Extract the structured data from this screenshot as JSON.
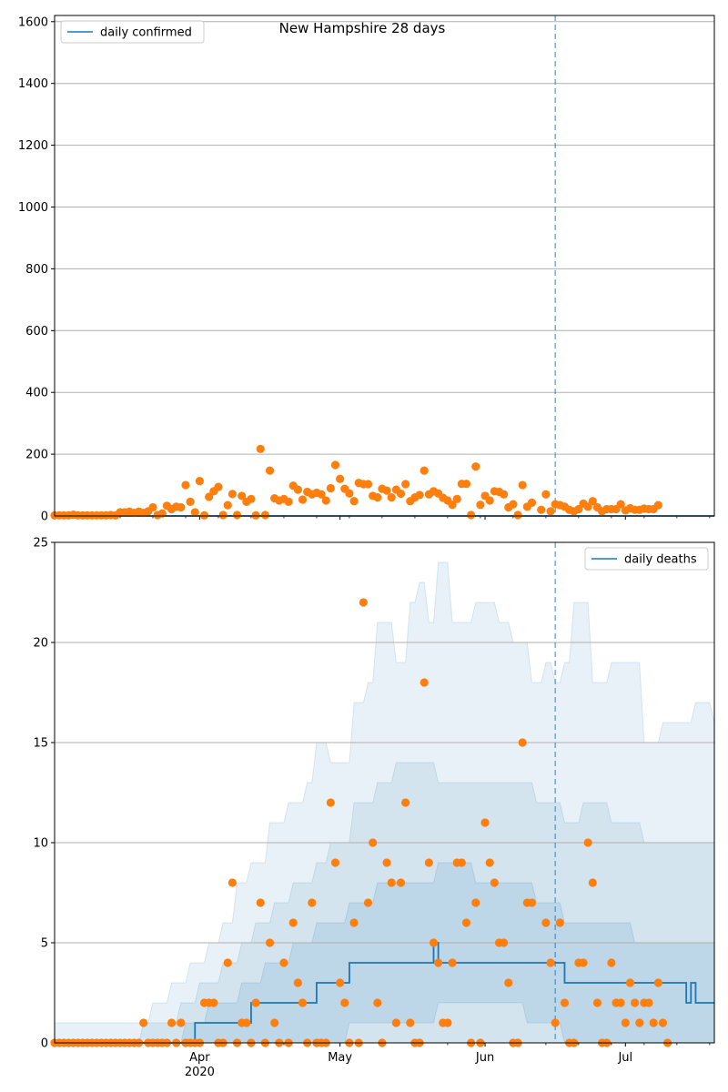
{
  "chart_data": [
    {
      "type": "scatter",
      "title": "New Hampshire 28 days",
      "xlabel": "",
      "ylabel": "",
      "ylim": [
        0,
        1620
      ],
      "yticks": [
        0,
        200,
        400,
        600,
        800,
        1000,
        1200,
        1400,
        1600
      ],
      "grid": "horizontal",
      "legend_position": "top-left",
      "forecast_date": "2020-06-16",
      "series": [
        {
          "name": "daily confirmed",
          "kind": "line",
          "color": "#1f77b4",
          "points": [
            [
              "2020-03-01",
              0
            ],
            [
              "2020-07-20",
              0
            ]
          ]
        },
        {
          "kind": "scatter",
          "color": "#ff7f0e",
          "start": "2020-03-01",
          "values": [
            2,
            2,
            2,
            2,
            4,
            2,
            2,
            2,
            2,
            2,
            2,
            2,
            3,
            2,
            12,
            12,
            14,
            10,
            14,
            10,
            15,
            28,
            3,
            8,
            33,
            22,
            30,
            28,
            100,
            46,
            12,
            113,
            2,
            62,
            80,
            94,
            3,
            35,
            71,
            3,
            65,
            46,
            55,
            2,
            217,
            3,
            147,
            57,
            50,
            55,
            46,
            98,
            85,
            53,
            78,
            70,
            75,
            70,
            50,
            90,
            165,
            120,
            88,
            73,
            48,
            107,
            103,
            103,
            65,
            60,
            88,
            82,
            60,
            85,
            72,
            103,
            48,
            60,
            68,
            147,
            70,
            80,
            73,
            59,
            50,
            36,
            55,
            104,
            104,
            3,
            160,
            36,
            65,
            50,
            80,
            78,
            70,
            28,
            38,
            3,
            100,
            30,
            43,
            null,
            20,
            70,
            15,
            38,
            35,
            30,
            20,
            15,
            22,
            40,
            30,
            48,
            28,
            15,
            22,
            22,
            22,
            38,
            18,
            25,
            20,
            20,
            24,
            22,
            22,
            35
          ]
        }
      ]
    },
    {
      "type": "area",
      "title": "",
      "xlabel": "",
      "ylabel": "",
      "ylim": [
        0,
        25
      ],
      "yticks": [
        0,
        5,
        10,
        15,
        20,
        25
      ],
      "grid": "horizontal",
      "legend_position": "top-right",
      "forecast_date": "2020-06-16",
      "x_tick_labels": [
        {
          "date": "2020-04-01",
          "label": "Apr",
          "sublabel": "2020"
        },
        {
          "date": "2020-05-01",
          "label": "May"
        },
        {
          "date": "2020-06-01",
          "label": "Jun"
        },
        {
          "date": "2020-07-01",
          "label": "Jul"
        }
      ],
      "series": [
        {
          "name": "daily deaths",
          "kind": "step-line",
          "color": "#1f77b4",
          "breakpoints": [
            [
              "2020-03-01",
              0
            ],
            [
              "2020-03-31",
              1
            ],
            [
              "2020-04-12",
              2
            ],
            [
              "2020-04-26",
              3
            ],
            [
              "2020-05-03",
              4
            ],
            [
              "2020-05-21",
              5
            ],
            [
              "2020-05-22",
              4
            ],
            [
              "2020-06-16",
              4
            ],
            [
              "2020-06-18",
              3
            ],
            [
              "2020-07-14",
              2
            ],
            [
              "2020-07-15",
              3
            ],
            [
              "2020-07-16",
              2
            ],
            [
              "2020-07-20",
              2
            ]
          ]
        },
        {
          "kind": "scatter",
          "color": "#ff7f0e",
          "start": "2020-03-01",
          "values": [
            0,
            0,
            0,
            0,
            0,
            0,
            0,
            0,
            0,
            0,
            0,
            0,
            0,
            0,
            0,
            0,
            0,
            0,
            0,
            1,
            0,
            0,
            0,
            0,
            0,
            1,
            0,
            1,
            0,
            0,
            0,
            0,
            2,
            2,
            2,
            0,
            0,
            4,
            8,
            0,
            1,
            1,
            0,
            2,
            7,
            0,
            5,
            1,
            0,
            4,
            0,
            6,
            3,
            2,
            0,
            7,
            0,
            0,
            0,
            12,
            9,
            3,
            2,
            0,
            6,
            0,
            22,
            7,
            10,
            2,
            0,
            9,
            8,
            1,
            8,
            12,
            1,
            0,
            0,
            18,
            9,
            5,
            4,
            1,
            1,
            4,
            9,
            9,
            6,
            0,
            7,
            0,
            11,
            9,
            8,
            5,
            5,
            3,
            0,
            0,
            15,
            7,
            7,
            null,
            null,
            6,
            4,
            1,
            6,
            2,
            0,
            0,
            4,
            4,
            10,
            8,
            2,
            0,
            0,
            4,
            2,
            2,
            1,
            3,
            2,
            1,
            2,
            2,
            1,
            3,
            1,
            0
          ]
        }
      ],
      "bands": [
        {
          "color": "#1f77b4",
          "opacity": 0.1,
          "upper": [
            [
              "2020-03-01",
              1
            ],
            [
              "2020-03-16",
              1
            ],
            [
              "2020-03-22",
              2
            ],
            [
              "2020-03-26",
              3
            ],
            [
              "2020-03-30",
              4
            ],
            [
              "2020-04-03",
              5
            ],
            [
              "2020-04-06",
              6
            ],
            [
              "2020-04-09",
              8
            ],
            [
              "2020-04-12",
              9
            ],
            [
              "2020-04-16",
              11
            ],
            [
              "2020-04-20",
              12
            ],
            [
              "2020-04-24",
              13
            ],
            [
              "2020-04-26",
              15
            ],
            [
              "2020-04-29",
              14
            ],
            [
              "2020-05-04",
              17
            ],
            [
              "2020-05-07",
              18
            ],
            [
              "2020-05-09",
              21
            ],
            [
              "2020-05-13",
              19
            ],
            [
              "2020-05-16",
              22
            ],
            [
              "2020-05-18",
              23
            ],
            [
              "2020-05-20",
              21
            ],
            [
              "2020-05-22",
              24
            ],
            [
              "2020-05-25",
              21
            ],
            [
              "2020-05-30",
              22
            ],
            [
              "2020-06-04",
              21
            ],
            [
              "2020-06-07",
              20
            ],
            [
              "2020-06-11",
              18
            ],
            [
              "2020-06-14",
              19
            ],
            [
              "2020-06-16",
              18
            ],
            [
              "2020-06-18",
              19
            ],
            [
              "2020-06-20",
              22
            ],
            [
              "2020-06-24",
              18
            ],
            [
              "2020-06-28",
              19
            ],
            [
              "2020-07-02",
              19
            ],
            [
              "2020-07-05",
              15
            ],
            [
              "2020-07-09",
              16
            ],
            [
              "2020-07-13",
              16
            ],
            [
              "2020-07-16",
              17
            ],
            [
              "2020-07-20",
              16
            ]
          ],
          "lower": [
            [
              "2020-03-01",
              0
            ],
            [
              "2020-07-20",
              0
            ]
          ]
        },
        {
          "color": "#1f77b4",
          "opacity": 0.1,
          "upper": [
            [
              "2020-03-01",
              0
            ],
            [
              "2020-03-20",
              1
            ],
            [
              "2020-03-28",
              2
            ],
            [
              "2020-04-01",
              3
            ],
            [
              "2020-04-06",
              4
            ],
            [
              "2020-04-10",
              5
            ],
            [
              "2020-04-13",
              6
            ],
            [
              "2020-04-17",
              7
            ],
            [
              "2020-04-21",
              8
            ],
            [
              "2020-04-26",
              9
            ],
            [
              "2020-04-29",
              10
            ],
            [
              "2020-05-04",
              12
            ],
            [
              "2020-05-09",
              13
            ],
            [
              "2020-05-13",
              14
            ],
            [
              "2020-05-22",
              13
            ],
            [
              "2020-05-30",
              13
            ],
            [
              "2020-06-06",
              13
            ],
            [
              "2020-06-12",
              12
            ],
            [
              "2020-06-16",
              12
            ],
            [
              "2020-06-18",
              11
            ],
            [
              "2020-06-22",
              12
            ],
            [
              "2020-06-28",
              11
            ],
            [
              "2020-07-05",
              10
            ],
            [
              "2020-07-12",
              10
            ],
            [
              "2020-07-20",
              10
            ]
          ],
          "lower": [
            [
              "2020-03-01",
              0
            ],
            [
              "2020-07-20",
              0
            ]
          ]
        },
        {
          "color": "#1f77b4",
          "opacity": 0.12,
          "upper": [
            [
              "2020-03-01",
              0
            ],
            [
              "2020-03-29",
              1
            ],
            [
              "2020-04-03",
              2
            ],
            [
              "2020-04-10",
              3
            ],
            [
              "2020-04-15",
              4
            ],
            [
              "2020-04-21",
              5
            ],
            [
              "2020-04-26",
              6
            ],
            [
              "2020-05-03",
              7
            ],
            [
              "2020-05-09",
              8
            ],
            [
              "2020-05-15",
              8
            ],
            [
              "2020-05-22",
              9
            ],
            [
              "2020-05-30",
              8
            ],
            [
              "2020-06-06",
              8
            ],
            [
              "2020-06-12",
              7
            ],
            [
              "2020-06-16",
              7
            ],
            [
              "2020-06-18",
              6
            ],
            [
              "2020-06-26",
              6
            ],
            [
              "2020-07-03",
              5
            ],
            [
              "2020-07-10",
              5
            ],
            [
              "2020-07-20",
              5
            ]
          ],
          "lower": [
            [
              "2020-03-01",
              0
            ],
            [
              "2020-04-26",
              0
            ],
            [
              "2020-05-03",
              1
            ],
            [
              "2020-05-22",
              2
            ],
            [
              "2020-06-10",
              1
            ],
            [
              "2020-06-16",
              1
            ],
            [
              "2020-06-18",
              0
            ],
            [
              "2020-07-20",
              0
            ]
          ]
        }
      ]
    }
  ]
}
